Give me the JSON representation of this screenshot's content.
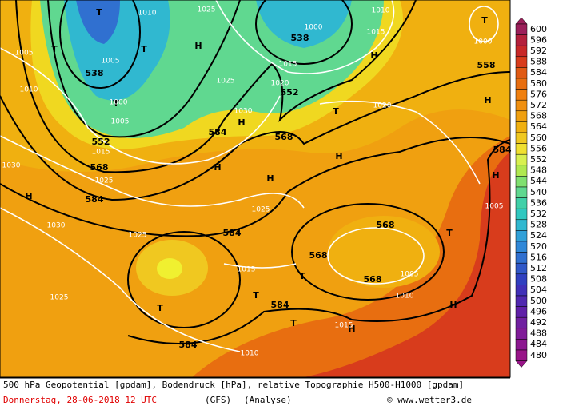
{
  "footer": {
    "description": "500 hPa Geopotential [gpdam], Bodendruck [hPa], relative Topographie H500-H1000 [gpdam]",
    "date": "Donnerstag, 28-06-2018  12 UTC",
    "model": "(GFS)",
    "run": "(Analyse)",
    "credit": "© www.wetter3.de"
  },
  "legend": [
    {
      "label": "600",
      "color": "#9c1f5a"
    },
    {
      "label": "596",
      "color": "#b4203c"
    },
    {
      "label": "592",
      "color": "#c82828"
    },
    {
      "label": "588",
      "color": "#d83c1c"
    },
    {
      "label": "584",
      "color": "#e05a14"
    },
    {
      "label": "580",
      "color": "#e86e10"
    },
    {
      "label": "576",
      "color": "#f08010"
    },
    {
      "label": "572",
      "color": "#f09010"
    },
    {
      "label": "568",
      "color": "#f0a010"
    },
    {
      "label": "564",
      "color": "#f0b010"
    },
    {
      "label": "560",
      "color": "#f0c820"
    },
    {
      "label": "556",
      "color": "#f0e030"
    },
    {
      "label": "552",
      "color": "#d8f050"
    },
    {
      "label": "548",
      "color": "#b0e850"
    },
    {
      "label": "544",
      "color": "#80e070"
    },
    {
      "label": "540",
      "color": "#60d890"
    },
    {
      "label": "536",
      "color": "#40d0a8"
    },
    {
      "label": "532",
      "color": "#30c8c0"
    },
    {
      "label": "528",
      "color": "#30b8d0"
    },
    {
      "label": "524",
      "color": "#30a0d8"
    },
    {
      "label": "520",
      "color": "#3088d8"
    },
    {
      "label": "516",
      "color": "#3070d0"
    },
    {
      "label": "512",
      "color": "#3058c8"
    },
    {
      "label": "508",
      "color": "#3040c0"
    },
    {
      "label": "504",
      "color": "#4030b8"
    },
    {
      "label": "500",
      "color": "#5028b0"
    },
    {
      "label": "496",
      "color": "#6020a8"
    },
    {
      "label": "492",
      "color": "#7020a0"
    },
    {
      "label": "488",
      "color": "#801c98"
    },
    {
      "label": "484",
      "color": "#8c1890"
    },
    {
      "label": "480",
      "color": "#981488"
    }
  ],
  "labels": [
    {
      "text": "T",
      "kind": "big"
    },
    {
      "text": "T",
      "kind": "big"
    },
    {
      "text": "538",
      "kind": "big"
    },
    {
      "text": "552",
      "kind": "big"
    },
    {
      "text": "568",
      "kind": "big"
    },
    {
      "text": "584",
      "kind": "big"
    },
    {
      "text": "538",
      "kind": "big"
    },
    {
      "text": "552",
      "kind": "big"
    },
    {
      "text": "568",
      "kind": "big"
    },
    {
      "text": "584",
      "kind": "big"
    },
    {
      "text": "584",
      "kind": "big"
    },
    {
      "text": "584",
      "kind": "big"
    },
    {
      "text": "584",
      "kind": "big"
    },
    {
      "text": "568",
      "kind": "big"
    },
    {
      "text": "568",
      "kind": "big"
    },
    {
      "text": "568",
      "kind": "big"
    },
    {
      "text": "558",
      "kind": "big"
    },
    {
      "text": "584",
      "kind": "big"
    },
    {
      "text": "H",
      "kind": "big"
    },
    {
      "text": "H",
      "kind": "big"
    },
    {
      "text": "H",
      "kind": "big"
    },
    {
      "text": "H",
      "kind": "big"
    },
    {
      "text": "H",
      "kind": "big"
    },
    {
      "text": "H",
      "kind": "big"
    },
    {
      "text": "H",
      "kind": "big"
    },
    {
      "text": "H",
      "kind": "big"
    },
    {
      "text": "H",
      "kind": "big"
    },
    {
      "text": "H",
      "kind": "big"
    },
    {
      "text": "H",
      "kind": "big"
    },
    {
      "text": "T",
      "kind": "big"
    },
    {
      "text": "T",
      "kind": "big"
    },
    {
      "text": "T",
      "kind": "big"
    },
    {
      "text": "T",
      "kind": "big"
    },
    {
      "text": "T",
      "kind": "big"
    },
    {
      "text": "T",
      "kind": "big"
    },
    {
      "text": "T",
      "kind": "big"
    },
    {
      "text": "T",
      "kind": "big"
    },
    {
      "text": "T",
      "kind": "big"
    },
    {
      "text": "1010",
      "kind": "small"
    },
    {
      "text": "1025",
      "kind": "small"
    },
    {
      "text": "1005",
      "kind": "small"
    },
    {
      "text": "1010",
      "kind": "small"
    },
    {
      "text": "1005",
      "kind": "small"
    },
    {
      "text": "1000",
      "kind": "small"
    },
    {
      "text": "1005",
      "kind": "small"
    },
    {
      "text": "1015",
      "kind": "small"
    },
    {
      "text": "1030",
      "kind": "small"
    },
    {
      "text": "1025",
      "kind": "small"
    },
    {
      "text": "1030",
      "kind": "small"
    },
    {
      "text": "1025",
      "kind": "small"
    },
    {
      "text": "1025",
      "kind": "small"
    },
    {
      "text": "1015",
      "kind": "small"
    },
    {
      "text": "1020",
      "kind": "small"
    },
    {
      "text": "1025",
      "kind": "small"
    },
    {
      "text": "1010",
      "kind": "small"
    },
    {
      "text": "1010",
      "kind": "small"
    },
    {
      "text": "1005",
      "kind": "small"
    },
    {
      "text": "1005",
      "kind": "small"
    },
    {
      "text": "1000",
      "kind": "small"
    },
    {
      "text": "1000",
      "kind": "small"
    },
    {
      "text": "1015",
      "kind": "small"
    },
    {
      "text": "1010",
      "kind": "small"
    },
    {
      "text": "1015",
      "kind": "small"
    },
    {
      "text": "1020",
      "kind": "small"
    },
    {
      "text": "1025",
      "kind": "small"
    },
    {
      "text": "1030",
      "kind": "small"
    },
    {
      "text": "1015",
      "kind": "small"
    }
  ]
}
